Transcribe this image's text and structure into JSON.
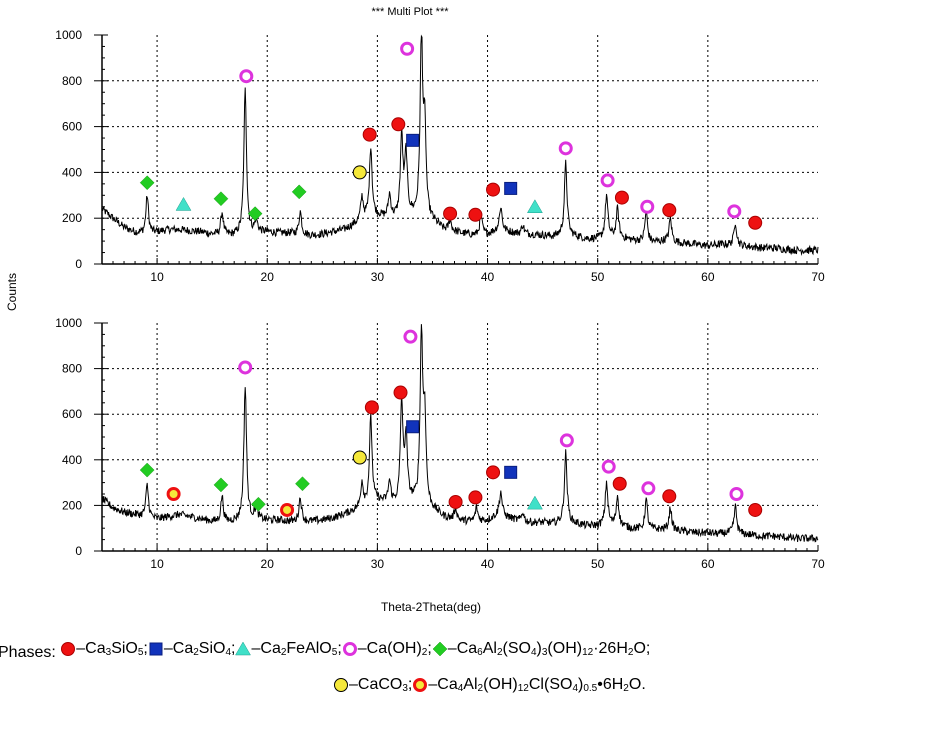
{
  "figure_title": "*** Multi Plot ***",
  "y_axis_label": "Counts",
  "x_axis_label": "Theta-2Theta(deg)",
  "chart_data": [
    {
      "type": "line",
      "panel": "top",
      "xlim": [
        5,
        70
      ],
      "ylim": [
        0,
        1000
      ],
      "x_ticks": [
        10,
        20,
        30,
        40,
        50,
        60,
        70
      ],
      "y_ticks": [
        0,
        200,
        400,
        600,
        800,
        1000
      ],
      "grid": true,
      "background": [
        [
          5,
          240
        ],
        [
          6,
          200
        ],
        [
          7,
          160
        ],
        [
          8,
          140
        ],
        [
          9,
          130
        ],
        [
          10,
          140
        ],
        [
          11,
          150
        ],
        [
          12,
          150
        ],
        [
          13,
          145
        ],
        [
          14,
          140
        ],
        [
          15,
          130
        ],
        [
          16,
          125
        ],
        [
          17,
          125
        ],
        [
          18,
          135
        ],
        [
          19,
          140
        ],
        [
          20,
          140
        ],
        [
          21,
          135
        ],
        [
          22,
          135
        ],
        [
          23,
          130
        ],
        [
          24,
          125
        ],
        [
          25,
          130
        ],
        [
          26,
          140
        ],
        [
          27,
          150
        ],
        [
          28,
          175
        ],
        [
          29,
          200
        ],
        [
          30,
          210
        ],
        [
          31,
          200
        ],
        [
          32,
          200
        ],
        [
          33,
          210
        ],
        [
          34,
          200
        ],
        [
          35,
          185
        ],
        [
          36,
          150
        ],
        [
          37,
          140
        ],
        [
          38,
          130
        ],
        [
          39,
          125
        ],
        [
          40,
          130
        ],
        [
          41,
          150
        ],
        [
          42,
          140
        ],
        [
          43,
          130
        ],
        [
          44,
          130
        ],
        [
          45,
          125
        ],
        [
          46,
          120
        ],
        [
          47,
          130
        ],
        [
          48,
          120
        ],
        [
          49,
          110
        ],
        [
          50,
          110
        ],
        [
          51,
          120
        ],
        [
          52,
          115
        ],
        [
          53,
          105
        ],
        [
          54,
          100
        ],
        [
          55,
          95
        ],
        [
          56,
          100
        ],
        [
          57,
          95
        ],
        [
          58,
          90
        ],
        [
          59,
          85
        ],
        [
          60,
          80
        ],
        [
          61,
          85
        ],
        [
          62,
          85
        ],
        [
          63,
          80
        ],
        [
          64,
          75
        ],
        [
          65,
          70
        ],
        [
          66,
          70
        ],
        [
          67,
          65
        ],
        [
          68,
          60
        ],
        [
          69,
          60
        ],
        [
          70,
          60
        ]
      ],
      "peaks": [
        [
          9.1,
          300
        ],
        [
          15.9,
          225
        ],
        [
          18.0,
          760
        ],
        [
          19.0,
          190
        ],
        [
          23.0,
          230
        ],
        [
          28.6,
          290
        ],
        [
          29.4,
          515
        ],
        [
          31.1,
          300
        ],
        [
          32.2,
          555
        ],
        [
          32.6,
          470
        ],
        [
          34.0,
          980
        ],
        [
          34.3,
          560
        ],
        [
          36.6,
          190
        ],
        [
          39.4,
          210
        ],
        [
          41.2,
          250
        ],
        [
          43.2,
          170
        ],
        [
          47.1,
          440
        ],
        [
          50.8,
          300
        ],
        [
          51.8,
          240
        ],
        [
          54.4,
          230
        ],
        [
          56.6,
          200
        ],
        [
          62.5,
          185
        ]
      ],
      "markers": [
        {
          "phase": "Ca3SiO5",
          "x": 29.3,
          "y": 565
        },
        {
          "phase": "Ca3SiO5",
          "x": 31.9,
          "y": 610
        },
        {
          "phase": "Ca3SiO5",
          "x": 36.6,
          "y": 220
        },
        {
          "phase": "Ca3SiO5",
          "x": 38.9,
          "y": 215
        },
        {
          "phase": "Ca3SiO5",
          "x": 40.5,
          "y": 325
        },
        {
          "phase": "Ca3SiO5",
          "x": 52.2,
          "y": 290
        },
        {
          "phase": "Ca3SiO5",
          "x": 56.5,
          "y": 235
        },
        {
          "phase": "Ca3SiO5",
          "x": 64.3,
          "y": 180
        },
        {
          "phase": "Ca2SiO4",
          "x": 33.2,
          "y": 540
        },
        {
          "phase": "Ca2SiO4",
          "x": 42.1,
          "y": 330
        },
        {
          "phase": "Ca2FeAlO5",
          "x": 12.4,
          "y": 260
        },
        {
          "phase": "Ca2FeAlO5",
          "x": 44.3,
          "y": 250
        },
        {
          "phase": "Ca(OH)2",
          "x": 18.1,
          "y": 820
        },
        {
          "phase": "Ca(OH)2",
          "x": 32.7,
          "y": 940
        },
        {
          "phase": "Ca(OH)2",
          "x": 47.1,
          "y": 505
        },
        {
          "phase": "Ca(OH)2",
          "x": 50.9,
          "y": 365
        },
        {
          "phase": "Ca(OH)2",
          "x": 54.5,
          "y": 250
        },
        {
          "phase": "Ca(OH)2",
          "x": 62.4,
          "y": 230
        },
        {
          "phase": "Ettringite",
          "x": 9.1,
          "y": 355
        },
        {
          "phase": "Ettringite",
          "x": 15.8,
          "y": 285
        },
        {
          "phase": "Ettringite",
          "x": 18.9,
          "y": 220
        },
        {
          "phase": "Ettringite",
          "x": 22.9,
          "y": 315
        },
        {
          "phase": "CaCO3",
          "x": 28.4,
          "y": 400
        }
      ]
    },
    {
      "type": "line",
      "panel": "bottom",
      "xlim": [
        5,
        70
      ],
      "ylim": [
        0,
        1000
      ],
      "x_ticks": [
        10,
        20,
        30,
        40,
        50,
        60,
        70
      ],
      "y_ticks": [
        0,
        200,
        400,
        600,
        800,
        1000
      ],
      "grid": true,
      "background": [
        [
          5,
          230
        ],
        [
          6,
          190
        ],
        [
          7,
          170
        ],
        [
          8,
          160
        ],
        [
          9,
          150
        ],
        [
          10,
          140
        ],
        [
          11,
          150
        ],
        [
          12,
          160
        ],
        [
          13,
          150
        ],
        [
          14,
          140
        ],
        [
          15,
          130
        ],
        [
          16,
          125
        ],
        [
          17,
          130
        ],
        [
          18,
          140
        ],
        [
          19,
          140
        ],
        [
          20,
          135
        ],
        [
          21,
          135
        ],
        [
          22,
          130
        ],
        [
          23,
          130
        ],
        [
          24,
          130
        ],
        [
          25,
          135
        ],
        [
          26,
          145
        ],
        [
          27,
          160
        ],
        [
          28,
          180
        ],
        [
          29,
          200
        ],
        [
          30,
          220
        ],
        [
          31,
          210
        ],
        [
          32,
          200
        ],
        [
          33,
          215
        ],
        [
          34,
          200
        ],
        [
          35,
          180
        ],
        [
          36,
          150
        ],
        [
          37,
          135
        ],
        [
          38,
          130
        ],
        [
          39,
          130
        ],
        [
          40,
          135
        ],
        [
          41,
          160
        ],
        [
          42,
          145
        ],
        [
          43,
          130
        ],
        [
          44,
          125
        ],
        [
          45,
          125
        ],
        [
          46,
          120
        ],
        [
          47,
          130
        ],
        [
          48,
          120
        ],
        [
          49,
          110
        ],
        [
          50,
          110
        ],
        [
          51,
          115
        ],
        [
          52,
          110
        ],
        [
          53,
          100
        ],
        [
          54,
          95
        ],
        [
          55,
          95
        ],
        [
          56,
          95
        ],
        [
          57,
          90
        ],
        [
          58,
          85
        ],
        [
          59,
          80
        ],
        [
          60,
          80
        ],
        [
          61,
          75
        ],
        [
          62,
          80
        ],
        [
          63,
          75
        ],
        [
          64,
          70
        ],
        [
          65,
          65
        ],
        [
          66,
          65
        ],
        [
          67,
          60
        ],
        [
          68,
          55
        ],
        [
          69,
          55
        ],
        [
          70,
          55
        ]
      ],
      "peaks": [
        [
          9.1,
          290
        ],
        [
          15.9,
          240
        ],
        [
          18.0,
          725
        ],
        [
          19.0,
          190
        ],
        [
          23.0,
          235
        ],
        [
          28.6,
          300
        ],
        [
          29.4,
          585
        ],
        [
          31.1,
          300
        ],
        [
          32.2,
          650
        ],
        [
          32.6,
          490
        ],
        [
          34.0,
          940
        ],
        [
          34.3,
          560
        ],
        [
          37.1,
          190
        ],
        [
          39.0,
          190
        ],
        [
          41.2,
          260
        ],
        [
          43.2,
          170
        ],
        [
          47.1,
          430
        ],
        [
          50.8,
          300
        ],
        [
          51.8,
          240
        ],
        [
          54.4,
          225
        ],
        [
          56.6,
          190
        ],
        [
          62.5,
          195
        ]
      ],
      "markers": [
        {
          "phase": "Ca3SiO5",
          "x": 29.5,
          "y": 630
        },
        {
          "phase": "Ca3SiO5",
          "x": 32.1,
          "y": 695
        },
        {
          "phase": "Ca3SiO5",
          "x": 37.1,
          "y": 215
        },
        {
          "phase": "Ca3SiO5",
          "x": 38.9,
          "y": 235
        },
        {
          "phase": "Ca3SiO5",
          "x": 40.5,
          "y": 345
        },
        {
          "phase": "Ca3SiO5",
          "x": 52.0,
          "y": 295
        },
        {
          "phase": "Ca3SiO5",
          "x": 56.5,
          "y": 240
        },
        {
          "phase": "Ca3SiO5",
          "x": 64.3,
          "y": 180
        },
        {
          "phase": "Ca2SiO4",
          "x": 33.2,
          "y": 545
        },
        {
          "phase": "Ca2SiO4",
          "x": 42.1,
          "y": 345
        },
        {
          "phase": "Ca2FeAlO5",
          "x": 44.3,
          "y": 210
        },
        {
          "phase": "Ca(OH)2",
          "x": 18.0,
          "y": 805
        },
        {
          "phase": "Ca(OH)2",
          "x": 33.0,
          "y": 940
        },
        {
          "phase": "Ca(OH)2",
          "x": 47.2,
          "y": 485
        },
        {
          "phase": "Ca(OH)2",
          "x": 51.0,
          "y": 370
        },
        {
          "phase": "Ca(OH)2",
          "x": 54.6,
          "y": 275
        },
        {
          "phase": "Ca(OH)2",
          "x": 62.6,
          "y": 250
        },
        {
          "phase": "Ettringite",
          "x": 9.1,
          "y": 355
        },
        {
          "phase": "Ettringite",
          "x": 15.8,
          "y": 290
        },
        {
          "phase": "Ettringite",
          "x": 19.2,
          "y": 205
        },
        {
          "phase": "Ettringite",
          "x": 23.2,
          "y": 295
        },
        {
          "phase": "CaCO3",
          "x": 28.4,
          "y": 410
        },
        {
          "phase": "Friedel",
          "x": 11.5,
          "y": 250
        },
        {
          "phase": "Friedel",
          "x": 21.8,
          "y": 180
        }
      ]
    }
  ],
  "phase_styles": {
    "Ca3SiO5": {
      "shape": "circle",
      "fill": "#ee1111",
      "stroke": "#aa0000"
    },
    "Ca2SiO4": {
      "shape": "square",
      "fill": "#1133bb",
      "stroke": "#0a1f80"
    },
    "Ca2FeAlO5": {
      "shape": "triangle",
      "fill": "#40e0c8",
      "stroke": "#20a090"
    },
    "Ca(OH)2": {
      "shape": "ring",
      "fill": "#ffffff",
      "stroke": "#dd33dd"
    },
    "Ettringite": {
      "shape": "diamond",
      "fill": "#22cc22",
      "stroke": "#119911"
    },
    "CaCO3": {
      "shape": "circle",
      "fill": "#f5e83a",
      "stroke": "#000000"
    },
    "Friedel": {
      "shape": "ring",
      "fill": "#f5e83a",
      "stroke": "#ee1111"
    }
  },
  "legend": {
    "prefix": "Phases: ",
    "sep": "; ",
    "end": ".",
    "items": [
      {
        "key": "Ca3SiO5",
        "icon": "red-circle-icon",
        "text_parts": [
          [
            "Ca",
            ""
          ],
          [
            "3",
            "sub"
          ],
          [
            "SiO",
            ""
          ],
          [
            "5",
            "sub"
          ]
        ]
      },
      {
        "key": "Ca2SiO4",
        "icon": "blue-square-icon",
        "text_parts": [
          [
            "Ca",
            ""
          ],
          [
            "2",
            "sub"
          ],
          [
            "SiO",
            ""
          ],
          [
            "4",
            "sub"
          ]
        ]
      },
      {
        "key": "Ca2FeAlO5",
        "icon": "cyan-triangle-icon",
        "text_parts": [
          [
            "Ca",
            ""
          ],
          [
            "2",
            "sub"
          ],
          [
            "FeAlO",
            ""
          ],
          [
            "5",
            "sub"
          ]
        ]
      },
      {
        "key": "Ca(OH)2",
        "icon": "magenta-ring-icon",
        "text_parts": [
          [
            "Ca(OH)",
            ""
          ],
          [
            "2",
            "sub"
          ]
        ]
      },
      {
        "key": "Ettringite",
        "icon": "green-diamond-icon",
        "text_parts": [
          [
            "Ca",
            ""
          ],
          [
            "6",
            "sub"
          ],
          [
            "Al",
            ""
          ],
          [
            "2",
            "sub"
          ],
          [
            "(SO",
            ""
          ],
          [
            "4",
            "sub"
          ],
          [
            ")",
            ""
          ],
          [
            "3",
            "sub"
          ],
          [
            "(OH)",
            ""
          ],
          [
            "12",
            "sub"
          ],
          [
            "·26H",
            ""
          ],
          [
            "2",
            "sub"
          ],
          [
            "O",
            ""
          ]
        ]
      },
      {
        "key": "CaCO3",
        "icon": "yellow-circle-icon",
        "text_parts": [
          [
            "CaCO",
            ""
          ],
          [
            "3",
            "sub"
          ]
        ]
      },
      {
        "key": "Friedel",
        "icon": "yellow-red-ring-icon",
        "text_parts": [
          [
            "Ca",
            ""
          ],
          [
            "4",
            "sub"
          ],
          [
            "Al",
            ""
          ],
          [
            "2",
            "sub"
          ],
          [
            "(OH)",
            ""
          ],
          [
            "12",
            "sub"
          ],
          [
            "Cl(SO",
            ""
          ],
          [
            "4",
            "sub"
          ],
          [
            ")",
            ""
          ],
          [
            "0.5",
            "sub"
          ],
          [
            "•6H",
            ""
          ],
          [
            "2",
            "sub"
          ],
          [
            "O",
            ""
          ]
        ]
      }
    ],
    "line1_count": 5,
    "dash": " – "
  }
}
